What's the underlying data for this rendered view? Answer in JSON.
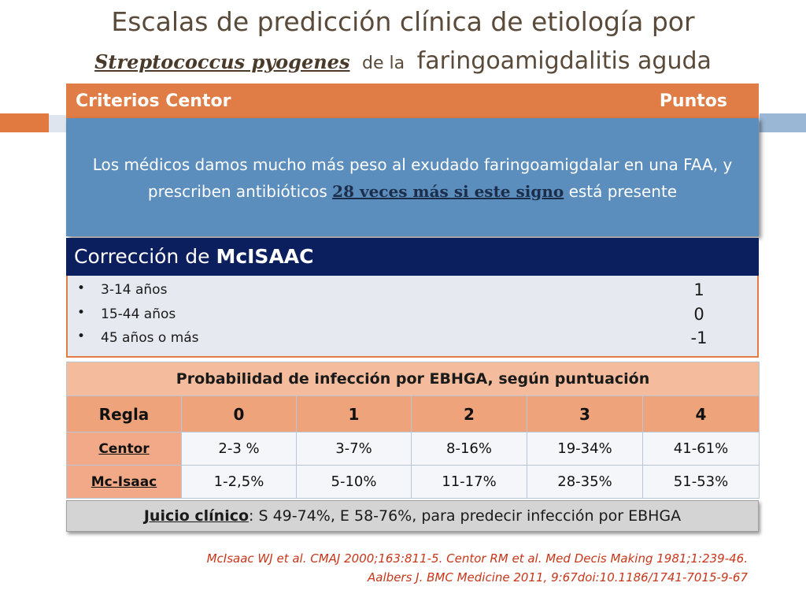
{
  "title": {
    "line1": "Escalas de predicción clínica  de etiología por",
    "bacteria": "Streptococcus pyogenes",
    "de_la": "de la",
    "line2_end": "faringoamigdalitis aguda"
  },
  "centor": {
    "header_left": "Criterios Centor",
    "header_right": "Puntos",
    "note_part1": "Los médicos damos mucho más peso al exudado faringoamigdalar en una FAA, y prescriben antibióticos",
    "note_bold": "28 veces más si este signo",
    "note_part2": "está presente"
  },
  "mcisaac": {
    "header_prefix": "Corrección  de",
    "header_bold": "McISAAC",
    "rows": [
      {
        "bullet": "•",
        "label": "3-14 años",
        "value": "1"
      },
      {
        "bullet": "•",
        "label": "15-44 años",
        "value": "0"
      },
      {
        "bullet": "•",
        "label": "45 años o más",
        "value": "-1"
      }
    ]
  },
  "probability": {
    "caption": "Probabilidad de infección por EBHGA, según puntuación",
    "header": [
      "Regla",
      "0",
      "1",
      "2",
      "3",
      "4"
    ],
    "rows": [
      {
        "label": "Centor",
        "values": [
          "2-3 %",
          "3-7%",
          "8-16%",
          "19-34%",
          "41-61%"
        ]
      },
      {
        "label": "Mc-Isaac",
        "values": [
          "1-2,5%",
          "5-10%",
          "11-17%",
          "28-35%",
          "51-53%"
        ]
      }
    ]
  },
  "juicio": {
    "label": "Juicio clínico",
    "text": ": S 49-74%, E 58-76%, para predecir infección por EBHGA"
  },
  "references": {
    "ref1": "McIsaac WJ et al. CMAJ 2000;163:811-5. Centor RM et al. Med Decis Making 1981;1:239-46.",
    "ref2": "Aalbers J. BMC Medicine 2011, 9:67doi:10.1186/1741-7015-9-67"
  },
  "colors": {
    "orange": "#e07c45",
    "navy": "#0b1f5e",
    "blue": "#5b8dbd",
    "reference_red": "#c8361a"
  }
}
